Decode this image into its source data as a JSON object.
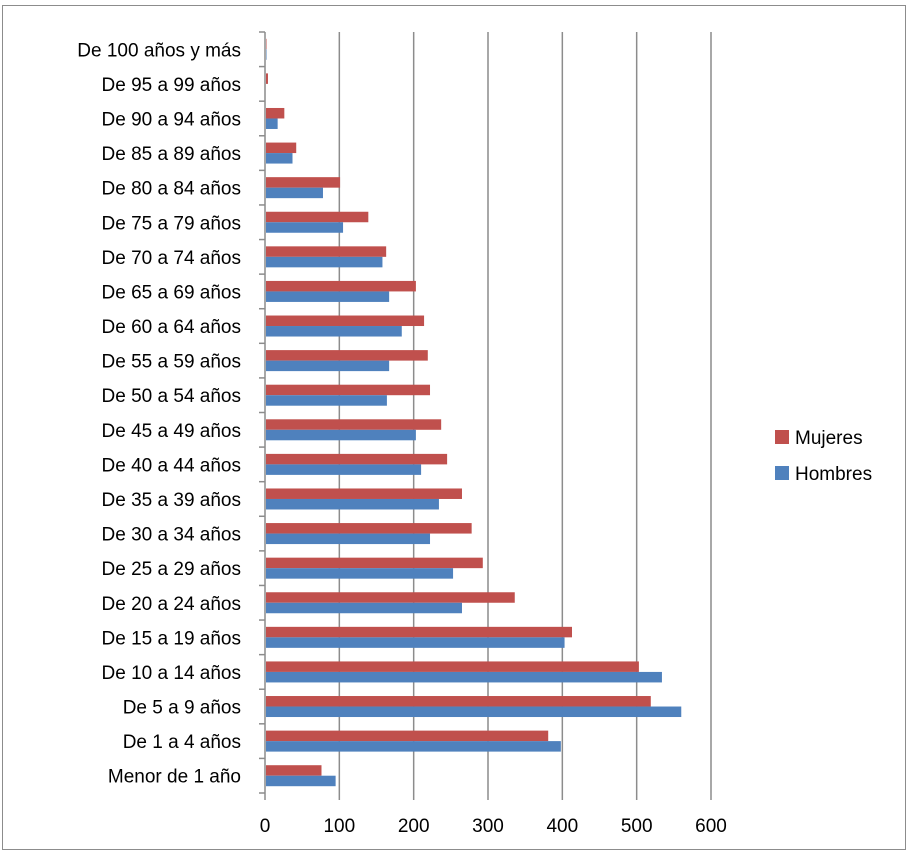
{
  "chart_data": {
    "type": "bar",
    "orientation": "horizontal",
    "categories": [
      "Menor de 1 año",
      "De 1 a 4 años",
      "De 5 a 9 años",
      "De 10 a 14 años",
      "De 15 a 19 años",
      "De 20 a 24 años",
      "De 25 a 29 años",
      "De 30 a 34 años",
      "De 35 a 39 años",
      "De 40 a 44 años",
      "De 45 a 49 años",
      "De 50 a 54 años",
      "De 55 a 59 años",
      "De 60 a 64 años",
      "De 65 a 69 años",
      "De 70 a 74 años",
      "De 75 a 79 años",
      "De 80 a 84 años",
      "De 85 a 89 años",
      "De 90 a 94 años",
      "De 95 a 99 años",
      "De 100 años y más"
    ],
    "series": [
      {
        "name": "Hombres",
        "color": "#4f81bd",
        "values": [
          95,
          398,
          560,
          534,
          403,
          265,
          253,
          222,
          234,
          210,
          203,
          164,
          167,
          184,
          167,
          158,
          105,
          78,
          37,
          17,
          1,
          2
        ]
      },
      {
        "name": "Mujeres",
        "color": "#c0504d",
        "values": [
          76,
          381,
          519,
          503,
          413,
          336,
          293,
          278,
          265,
          245,
          237,
          222,
          219,
          214,
          203,
          163,
          139,
          101,
          42,
          26,
          4,
          2
        ]
      }
    ],
    "xlim": [
      0,
      600
    ],
    "x_ticks": [
      "0",
      "100",
      "200",
      "300",
      "400",
      "500",
      "600"
    ],
    "grid": "vertical",
    "legend": "right",
    "legend_order": [
      "Mujeres",
      "Hombres"
    ],
    "title": "",
    "xlabel": "",
    "ylabel": ""
  }
}
